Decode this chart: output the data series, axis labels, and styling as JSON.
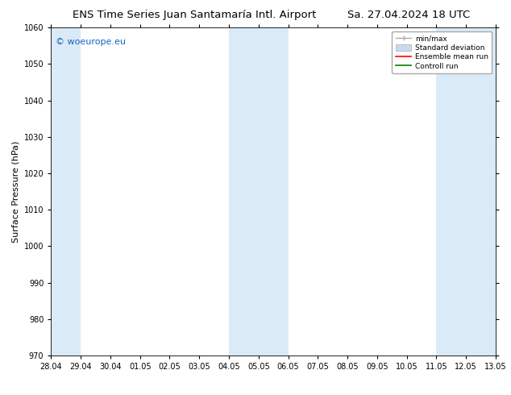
{
  "title_left": "ENS Time Series Juan Santamaría Intl. Airport",
  "title_right": "Sa. 27.04.2024 18 UTC",
  "ylabel": "Surface Pressure (hPa)",
  "ylim": [
    970,
    1060
  ],
  "yticks": [
    970,
    980,
    990,
    1000,
    1010,
    1020,
    1030,
    1040,
    1050,
    1060
  ],
  "xtick_labels": [
    "28.04",
    "29.04",
    "30.04",
    "01.05",
    "02.05",
    "03.05",
    "04.05",
    "05.05",
    "06.05",
    "07.05",
    "08.05",
    "09.05",
    "10.05",
    "11.05",
    "12.05",
    "13.05"
  ],
  "shaded_bands": [
    {
      "xstart": 0,
      "xend": 1
    },
    {
      "xstart": 6,
      "xend": 8
    },
    {
      "xstart": 13,
      "xend": 15
    }
  ],
  "shaded_color": "#daeaf7",
  "background_color": "#ffffff",
  "watermark_text": "© woeurope.eu",
  "watermark_color": "#1565c0",
  "legend_entries": [
    {
      "label": "min/max"
    },
    {
      "label": "Standard deviation"
    },
    {
      "label": "Ensemble mean run"
    },
    {
      "label": "Controll run"
    }
  ],
  "title_fontsize": 9.5,
  "tick_fontsize": 7,
  "label_fontsize": 8,
  "watermark_fontsize": 8
}
